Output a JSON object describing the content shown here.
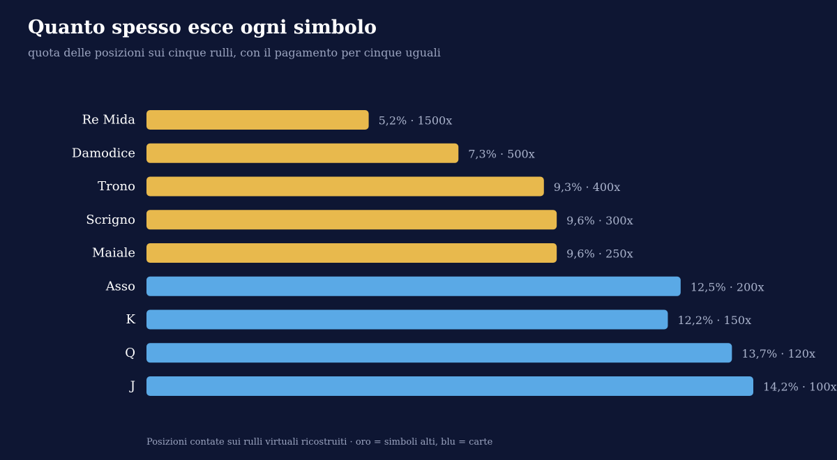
{
  "title": "Quanto spesso esce ogni simbolo",
  "subtitle": "quota delle posizioni sui cinque rulli, con il pagamento per cinque uguali",
  "footnote": "Posizioni contate sui rulli virtuali ricostruiti · oro = simboli alti, blu = carte",
  "colors": {
    "background": "#0e1633",
    "high_symbol": "#e8b94d",
    "card": "#5aa9e6"
  },
  "chart_data": {
    "type": "bar",
    "orientation": "horizontal",
    "categories": [
      "Re Mida",
      "Damodice",
      "Trono",
      "Scrigno",
      "Maiale",
      "Asso",
      "K",
      "Q",
      "J"
    ],
    "values": [
      5.2,
      7.3,
      9.3,
      9.6,
      9.6,
      12.5,
      12.2,
      13.7,
      14.2
    ],
    "payouts": [
      "1500x",
      "500x",
      "400x",
      "300x",
      "250x",
      "200x",
      "150x",
      "120x",
      "100x"
    ],
    "value_labels": [
      "5,2% · 1500x",
      "7,3% · 500x",
      "9,3% · 400x",
      "9,6% · 300x",
      "9,6% · 250x",
      "12,5% · 200x",
      "12,2% · 150x",
      "13,7% · 120x",
      "14,2% · 100x"
    ],
    "groups": [
      "high",
      "high",
      "high",
      "high",
      "high",
      "card",
      "card",
      "card",
      "card"
    ],
    "xlim": [
      0,
      14.2
    ],
    "grid": false,
    "title": "Quanto spesso esce ogni simbolo",
    "subtitle": "quota delle posizioni sui cinque rulli, con il pagamento per cinque uguali"
  }
}
